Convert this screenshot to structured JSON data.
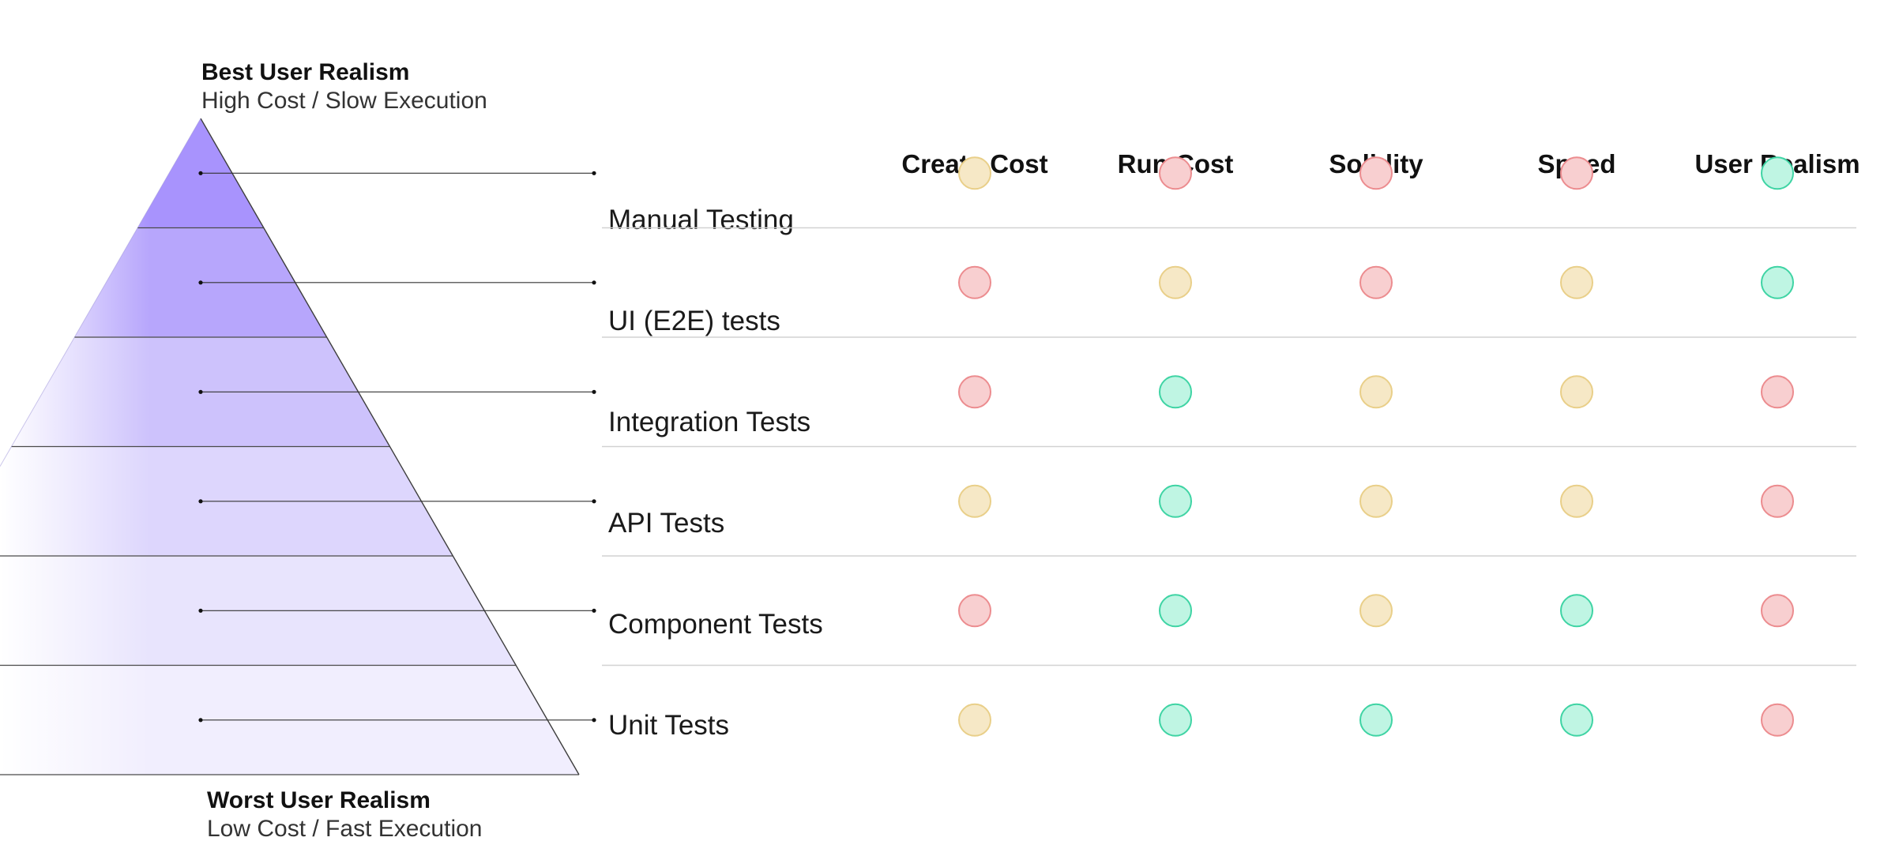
{
  "top_caption": {
    "title": "Best User Realism",
    "subtitle": "High Cost / Slow Execution"
  },
  "bottom_caption": {
    "title": "Worst User Realism",
    "subtitle": "Low Cost / Fast Execution"
  },
  "columns": [
    "Create Cost",
    "Run Cost",
    "Solidity",
    "Speed",
    "User Realism"
  ],
  "rows": [
    {
      "label": "Manual Testing",
      "ratings": [
        "medium",
        "bad",
        "bad",
        "bad",
        "good"
      ]
    },
    {
      "label": "UI (E2E) tests",
      "ratings": [
        "bad",
        "medium",
        "bad",
        "medium",
        "good"
      ]
    },
    {
      "label": "Integration Tests",
      "ratings": [
        "bad",
        "good",
        "medium",
        "medium",
        "bad"
      ]
    },
    {
      "label": "API Tests",
      "ratings": [
        "medium",
        "good",
        "medium",
        "medium",
        "bad"
      ]
    },
    {
      "label": "Component Tests",
      "ratings": [
        "bad",
        "good",
        "medium",
        "good",
        "bad"
      ]
    },
    {
      "label": "Unit Tests",
      "ratings": [
        "medium",
        "good",
        "good",
        "good",
        "bad"
      ]
    }
  ],
  "colors": {
    "good": {
      "fill": "#bff5e3",
      "stroke": "#3fd4a4"
    },
    "medium": {
      "fill": "#f6e8c6",
      "stroke": "#e9cf89"
    },
    "bad": {
      "fill": "#f8cfd0",
      "stroke": "#ec8c8f"
    },
    "pyramid_layers": [
      "#a893fd",
      "#b7a6fc",
      "#cdc2fc",
      "#ddd6fd",
      "#e8e4fd",
      "#f1eefe"
    ],
    "divider": "#d2d2d2",
    "connector": "#333333"
  }
}
